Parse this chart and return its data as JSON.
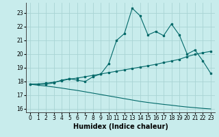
{
  "xlabel": "Humidex (Indice chaleur)",
  "bg_color": "#c8ecec",
  "grid_color": "#a8d4d4",
  "line_color": "#006868",
  "x_values": [
    0,
    1,
    2,
    3,
    4,
    5,
    6,
    7,
    8,
    9,
    10,
    11,
    12,
    13,
    14,
    15,
    16,
    17,
    18,
    19,
    20,
    21,
    22,
    23
  ],
  "line1_y": [
    17.8,
    17.8,
    17.8,
    17.9,
    18.1,
    18.2,
    18.1,
    18.0,
    18.35,
    18.55,
    19.3,
    21.0,
    21.5,
    23.35,
    22.8,
    21.4,
    21.65,
    21.35,
    22.2,
    21.4,
    20.0,
    20.3,
    19.5,
    18.6
  ],
  "line2_y": [
    17.8,
    17.82,
    17.88,
    17.95,
    18.05,
    18.18,
    18.25,
    18.35,
    18.45,
    18.55,
    18.65,
    18.75,
    18.85,
    18.95,
    19.05,
    19.15,
    19.25,
    19.38,
    19.5,
    19.62,
    19.82,
    19.98,
    20.1,
    20.2
  ],
  "line3_y": [
    17.8,
    17.73,
    17.67,
    17.6,
    17.52,
    17.43,
    17.35,
    17.25,
    17.15,
    17.05,
    16.95,
    16.85,
    16.75,
    16.65,
    16.55,
    16.47,
    16.4,
    16.33,
    16.27,
    16.2,
    16.14,
    16.09,
    16.04,
    16.0
  ],
  "xlim": [
    -0.5,
    23.5
  ],
  "ylim": [
    15.75,
    23.75
  ],
  "yticks": [
    16,
    17,
    18,
    19,
    20,
    21,
    22,
    23
  ],
  "xticks": [
    0,
    1,
    2,
    3,
    4,
    5,
    6,
    7,
    8,
    9,
    10,
    11,
    12,
    13,
    14,
    15,
    16,
    17,
    18,
    19,
    20,
    21,
    22,
    23
  ],
  "tick_fontsize": 5.5,
  "xlabel_fontsize": 7.0
}
